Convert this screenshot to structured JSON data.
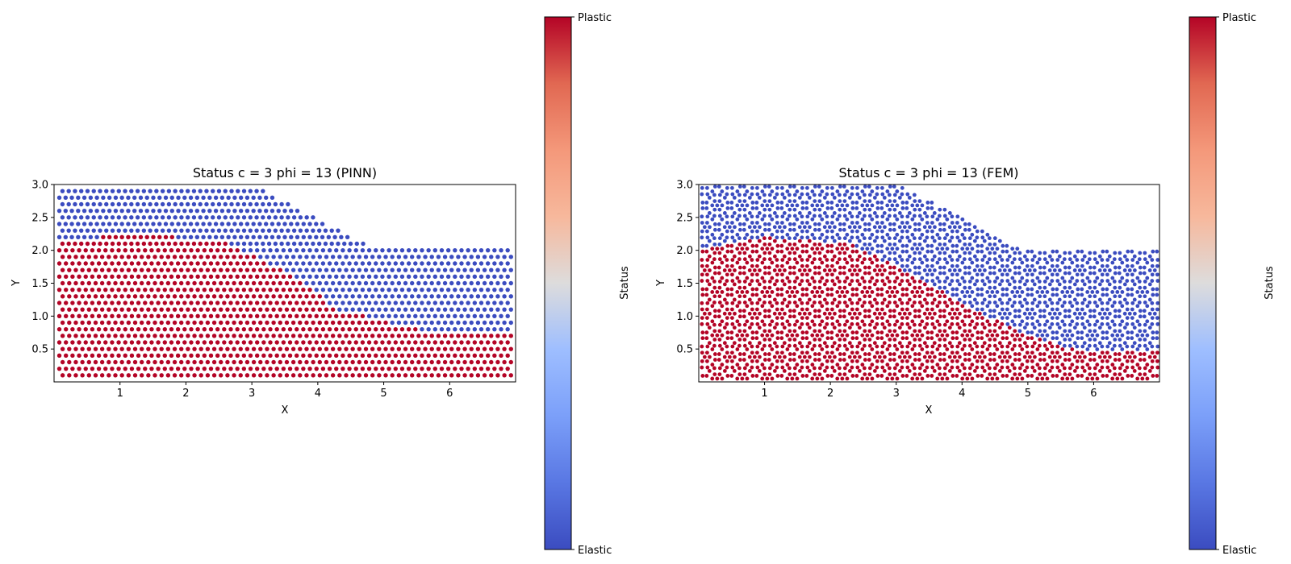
{
  "colors": {
    "elastic": "#3b4cc0",
    "plastic": "#b40426",
    "colormap": "coolwarm"
  },
  "chart_data": [
    {
      "type": "scatter",
      "title": "Status c = 3 phi = 13 (PINN)",
      "xlabel": "X",
      "ylabel": "Y",
      "xlim": [
        0.0,
        7.0
      ],
      "ylim": [
        0.0,
        3.0
      ],
      "xticks": [
        "1",
        "2",
        "3",
        "4",
        "5",
        "6"
      ],
      "yticks": [
        "0.5",
        "1.0",
        "1.5",
        "2.0",
        "2.5",
        "3.0"
      ],
      "grid": false,
      "pattern": "regular-grid",
      "domain_boundary": [
        [
          0,
          3.0
        ],
        [
          3.0,
          3.0
        ],
        [
          4.9,
          2.0
        ],
        [
          7.0,
          2.0
        ]
      ],
      "plastic_region_boundary": [
        [
          0,
          2.15
        ],
        [
          1.4,
          2.25
        ],
        [
          2.6,
          2.1
        ],
        [
          3.5,
          1.7
        ],
        [
          4.3,
          1.1
        ],
        [
          5.5,
          0.8
        ],
        [
          7.0,
          0.7
        ]
      ],
      "status_values": {
        "elastic": 0,
        "plastic": 1
      },
      "colorbar": {
        "label": "Status",
        "min_label": "Elastic",
        "max_label": "Plastic"
      }
    },
    {
      "type": "scatter",
      "title": "Status c = 3 phi = 13 (FEM)",
      "xlabel": "X",
      "ylabel": "Y",
      "xlim": [
        0.0,
        7.0
      ],
      "ylim": [
        0.0,
        3.0
      ],
      "xticks": [
        "1",
        "2",
        "3",
        "4",
        "5",
        "6"
      ],
      "yticks": [
        "0.5",
        "1.0",
        "1.5",
        "2.0",
        "2.5",
        "3.0"
      ],
      "grid": false,
      "pattern": "hexagonal-rings",
      "domain_boundary": [
        [
          0,
          3.0
        ],
        [
          3.0,
          3.0
        ],
        [
          4.9,
          2.0
        ],
        [
          7.0,
          2.0
        ]
      ],
      "plastic_region_boundary": [
        [
          0,
          2.0
        ],
        [
          1.0,
          2.2
        ],
        [
          2.3,
          2.1
        ],
        [
          3.3,
          1.6
        ],
        [
          4.2,
          1.1
        ],
        [
          5.0,
          0.7
        ],
        [
          5.7,
          0.5
        ],
        [
          7.0,
          0.45
        ]
      ],
      "status_values": {
        "elastic": 0,
        "plastic": 1
      },
      "colorbar": {
        "label": "Status",
        "min_label": "Elastic",
        "max_label": "Plastic"
      }
    }
  ]
}
